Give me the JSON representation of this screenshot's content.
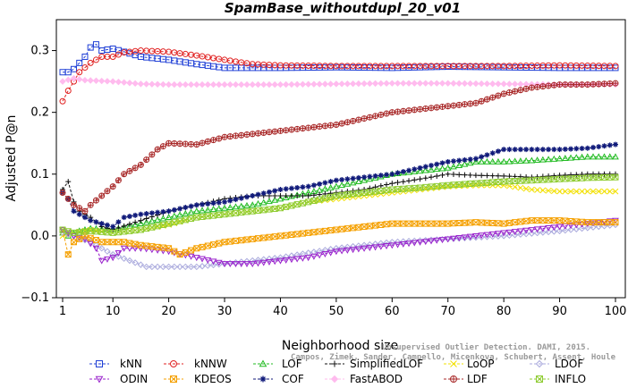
{
  "chart_data": {
    "type": "line",
    "title": "SpamBase_withoutdupl_20_v01",
    "xlabel": "Neighborhood size",
    "ylabel": "Adjusted P@n",
    "xlim": [
      1,
      100
    ],
    "ylim": [
      -0.1,
      0.35
    ],
    "xticks": [
      1,
      10,
      20,
      30,
      40,
      50,
      60,
      70,
      80,
      90,
      100
    ],
    "yticks": [
      -0.1,
      0.0,
      0.1,
      0.2,
      0.3
    ],
    "ytick_labels": [
      "−0.1",
      "0.0",
      "0.1",
      "0.2",
      "0.3"
    ],
    "grid": false,
    "legend_position": "bottom",
    "credit_lines": [
      "Unsupervised Outlier Detection. DAMI, 2015.",
      "Campos, Zimek, Sander, Campello, Micenkova, Schubert, Assent, Houle"
    ],
    "series": [
      {
        "name": "kNN",
        "color": "#1f3fd6",
        "marker": "square",
        "points": [
          [
            1,
            0.265
          ],
          [
            2,
            0.265
          ],
          [
            3,
            0.27
          ],
          [
            4,
            0.28
          ],
          [
            5,
            0.29
          ],
          [
            6,
            0.305
          ],
          [
            7,
            0.31
          ],
          [
            8,
            0.3
          ],
          [
            10,
            0.303
          ],
          [
            12,
            0.298
          ],
          [
            15,
            0.29
          ],
          [
            20,
            0.285
          ],
          [
            25,
            0.278
          ],
          [
            30,
            0.272
          ],
          [
            40,
            0.272
          ],
          [
            50,
            0.273
          ],
          [
            60,
            0.272
          ],
          [
            70,
            0.274
          ],
          [
            80,
            0.273
          ],
          [
            90,
            0.272
          ],
          [
            100,
            0.272
          ]
        ]
      },
      {
        "name": "kNNW",
        "color": "#e02020",
        "marker": "circle",
        "points": [
          [
            1,
            0.218
          ],
          [
            2,
            0.235
          ],
          [
            3,
            0.25
          ],
          [
            4,
            0.265
          ],
          [
            6,
            0.28
          ],
          [
            8,
            0.29
          ],
          [
            10,
            0.29
          ],
          [
            12,
            0.297
          ],
          [
            15,
            0.3
          ],
          [
            20,
            0.298
          ],
          [
            25,
            0.292
          ],
          [
            30,
            0.285
          ],
          [
            35,
            0.278
          ],
          [
            40,
            0.276
          ],
          [
            50,
            0.275
          ],
          [
            60,
            0.275
          ],
          [
            70,
            0.275
          ],
          [
            80,
            0.275
          ],
          [
            90,
            0.276
          ],
          [
            100,
            0.275
          ]
        ]
      },
      {
        "name": "LOF",
        "color": "#22bb22",
        "marker": "triangle-up",
        "points": [
          [
            1,
            0.005
          ],
          [
            2,
            0.0
          ],
          [
            4,
            0.008
          ],
          [
            6,
            0.012
          ],
          [
            10,
            0.01
          ],
          [
            15,
            0.02
          ],
          [
            20,
            0.03
          ],
          [
            25,
            0.04
          ],
          [
            30,
            0.045
          ],
          [
            35,
            0.05
          ],
          [
            40,
            0.06
          ],
          [
            45,
            0.07
          ],
          [
            50,
            0.08
          ],
          [
            55,
            0.09
          ],
          [
            60,
            0.1
          ],
          [
            65,
            0.105
          ],
          [
            70,
            0.11
          ],
          [
            75,
            0.12
          ],
          [
            80,
            0.12
          ],
          [
            85,
            0.122
          ],
          [
            90,
            0.125
          ],
          [
            95,
            0.128
          ],
          [
            100,
            0.128
          ]
        ]
      },
      {
        "name": "SimplifiedLOF",
        "color": "#111111",
        "marker": "plus",
        "points": [
          [
            1,
            0.075
          ],
          [
            2,
            0.088
          ],
          [
            3,
            0.055
          ],
          [
            4,
            0.04
          ],
          [
            6,
            0.03
          ],
          [
            8,
            0.015
          ],
          [
            10,
            0.01
          ],
          [
            15,
            0.025
          ],
          [
            20,
            0.04
          ],
          [
            25,
            0.05
          ],
          [
            30,
            0.06
          ],
          [
            35,
            0.065
          ],
          [
            40,
            0.065
          ],
          [
            45,
            0.065
          ],
          [
            50,
            0.07
          ],
          [
            55,
            0.075
          ],
          [
            60,
            0.085
          ],
          [
            65,
            0.092
          ],
          [
            70,
            0.1
          ],
          [
            75,
            0.098
          ],
          [
            80,
            0.097
          ],
          [
            85,
            0.095
          ],
          [
            90,
            0.098
          ],
          [
            95,
            0.1
          ],
          [
            100,
            0.1
          ]
        ]
      },
      {
        "name": "LoOP",
        "color": "#f2e000",
        "marker": "cross",
        "points": [
          [
            1,
            0.0
          ],
          [
            3,
            0.005
          ],
          [
            6,
            0.01
          ],
          [
            10,
            0.005
          ],
          [
            15,
            0.01
          ],
          [
            20,
            0.018
          ],
          [
            25,
            0.03
          ],
          [
            30,
            0.035
          ],
          [
            35,
            0.04
          ],
          [
            40,
            0.045
          ],
          [
            45,
            0.055
          ],
          [
            50,
            0.06
          ],
          [
            55,
            0.065
          ],
          [
            60,
            0.07
          ],
          [
            65,
            0.075
          ],
          [
            70,
            0.08
          ],
          [
            75,
            0.082
          ],
          [
            80,
            0.082
          ],
          [
            85,
            0.075
          ],
          [
            90,
            0.072
          ],
          [
            95,
            0.072
          ],
          [
            100,
            0.072
          ]
        ]
      },
      {
        "name": "LDOF",
        "color": "#aaaadd",
        "marker": "diamond",
        "points": [
          [
            1,
            0.005
          ],
          [
            3,
            0.0
          ],
          [
            6,
            -0.01
          ],
          [
            10,
            -0.03
          ],
          [
            13,
            -0.04
          ],
          [
            16,
            -0.05
          ],
          [
            20,
            -0.05
          ],
          [
            25,
            -0.05
          ],
          [
            30,
            -0.045
          ],
          [
            35,
            -0.04
          ],
          [
            40,
            -0.035
          ],
          [
            50,
            -0.02
          ],
          [
            60,
            -0.01
          ],
          [
            70,
            -0.005
          ],
          [
            80,
            0.0
          ],
          [
            90,
            0.008
          ],
          [
            100,
            0.018
          ]
        ]
      },
      {
        "name": "ODIN",
        "color": "#9922cc",
        "marker": "triangle-down",
        "points": [
          [
            1,
            0.01
          ],
          [
            3,
            0.0
          ],
          [
            5,
            -0.005
          ],
          [
            7,
            -0.02
          ],
          [
            8,
            -0.04
          ],
          [
            10,
            -0.035
          ],
          [
            12,
            -0.02
          ],
          [
            15,
            -0.02
          ],
          [
            20,
            -0.025
          ],
          [
            25,
            -0.035
          ],
          [
            30,
            -0.045
          ],
          [
            35,
            -0.045
          ],
          [
            40,
            -0.04
          ],
          [
            45,
            -0.035
          ],
          [
            50,
            -0.025
          ],
          [
            55,
            -0.02
          ],
          [
            60,
            -0.015
          ],
          [
            65,
            -0.01
          ],
          [
            70,
            -0.005
          ],
          [
            75,
            0.0
          ],
          [
            80,
            0.005
          ],
          [
            85,
            0.01
          ],
          [
            90,
            0.015
          ],
          [
            95,
            0.02
          ],
          [
            100,
            0.025
          ]
        ]
      },
      {
        "name": "KDEOS",
        "color": "#f5a000",
        "marker": "square-cross",
        "points": [
          [
            1,
            0.01
          ],
          [
            2,
            -0.03
          ],
          [
            3,
            -0.01
          ],
          [
            5,
            0.0
          ],
          [
            8,
            -0.01
          ],
          [
            12,
            -0.01
          ],
          [
            15,
            -0.015
          ],
          [
            20,
            -0.02
          ],
          [
            22,
            -0.03
          ],
          [
            25,
            -0.02
          ],
          [
            30,
            -0.01
          ],
          [
            35,
            -0.005
          ],
          [
            40,
            0.0
          ],
          [
            45,
            0.005
          ],
          [
            50,
            0.01
          ],
          [
            55,
            0.015
          ],
          [
            60,
            0.02
          ],
          [
            65,
            0.02
          ],
          [
            70,
            0.02
          ],
          [
            75,
            0.022
          ],
          [
            80,
            0.02
          ],
          [
            85,
            0.025
          ],
          [
            90,
            0.025
          ],
          [
            95,
            0.022
          ],
          [
            100,
            0.022
          ]
        ]
      },
      {
        "name": "COF",
        "color": "#101a7a",
        "marker": "asterisk",
        "points": [
          [
            1,
            0.07
          ],
          [
            2,
            0.06
          ],
          [
            3,
            0.04
          ],
          [
            5,
            0.03
          ],
          [
            6,
            0.025
          ],
          [
            8,
            0.02
          ],
          [
            10,
            0.015
          ],
          [
            12,
            0.03
          ],
          [
            15,
            0.035
          ],
          [
            20,
            0.04
          ],
          [
            25,
            0.05
          ],
          [
            30,
            0.055
          ],
          [
            35,
            0.065
          ],
          [
            40,
            0.075
          ],
          [
            45,
            0.08
          ],
          [
            50,
            0.09
          ],
          [
            55,
            0.095
          ],
          [
            60,
            0.1
          ],
          [
            65,
            0.11
          ],
          [
            70,
            0.12
          ],
          [
            75,
            0.125
          ],
          [
            80,
            0.14
          ],
          [
            85,
            0.14
          ],
          [
            90,
            0.14
          ],
          [
            95,
            0.142
          ],
          [
            100,
            0.148
          ]
        ]
      },
      {
        "name": "FastABOD",
        "color": "#ffbbee",
        "marker": "diamond-filled",
        "points": [
          [
            1,
            0.25
          ],
          [
            3,
            0.255
          ],
          [
            5,
            0.252
          ],
          [
            10,
            0.25
          ],
          [
            15,
            0.246
          ],
          [
            20,
            0.245
          ],
          [
            30,
            0.245
          ],
          [
            40,
            0.245
          ],
          [
            50,
            0.246
          ],
          [
            60,
            0.247
          ],
          [
            70,
            0.247
          ],
          [
            80,
            0.246
          ],
          [
            90,
            0.245
          ],
          [
            100,
            0.245
          ]
        ]
      },
      {
        "name": "LDF",
        "color": "#a82828",
        "marker": "circle-plus",
        "points": [
          [
            1,
            0.07
          ],
          [
            3,
            0.05
          ],
          [
            5,
            0.04
          ],
          [
            6,
            0.05
          ],
          [
            8,
            0.065
          ],
          [
            10,
            0.08
          ],
          [
            12,
            0.1
          ],
          [
            15,
            0.115
          ],
          [
            18,
            0.14
          ],
          [
            20,
            0.15
          ],
          [
            25,
            0.148
          ],
          [
            30,
            0.16
          ],
          [
            35,
            0.165
          ],
          [
            40,
            0.17
          ],
          [
            45,
            0.175
          ],
          [
            50,
            0.18
          ],
          [
            55,
            0.19
          ],
          [
            60,
            0.2
          ],
          [
            65,
            0.205
          ],
          [
            70,
            0.21
          ],
          [
            75,
            0.215
          ],
          [
            80,
            0.23
          ],
          [
            85,
            0.24
          ],
          [
            90,
            0.245
          ],
          [
            95,
            0.245
          ],
          [
            100,
            0.247
          ]
        ]
      },
      {
        "name": "INFLO",
        "color": "#8fcc33",
        "marker": "square-x",
        "points": [
          [
            1,
            0.01
          ],
          [
            3,
            0.005
          ],
          [
            6,
            0.008
          ],
          [
            10,
            0.005
          ],
          [
            15,
            0.01
          ],
          [
            20,
            0.02
          ],
          [
            25,
            0.03
          ],
          [
            30,
            0.035
          ],
          [
            35,
            0.04
          ],
          [
            40,
            0.045
          ],
          [
            45,
            0.055
          ],
          [
            50,
            0.065
          ],
          [
            55,
            0.07
          ],
          [
            60,
            0.075
          ],
          [
            65,
            0.078
          ],
          [
            70,
            0.082
          ],
          [
            75,
            0.085
          ],
          [
            80,
            0.088
          ],
          [
            85,
            0.09
          ],
          [
            90,
            0.092
          ],
          [
            95,
            0.094
          ],
          [
            100,
            0.095
          ]
        ]
      }
    ]
  }
}
